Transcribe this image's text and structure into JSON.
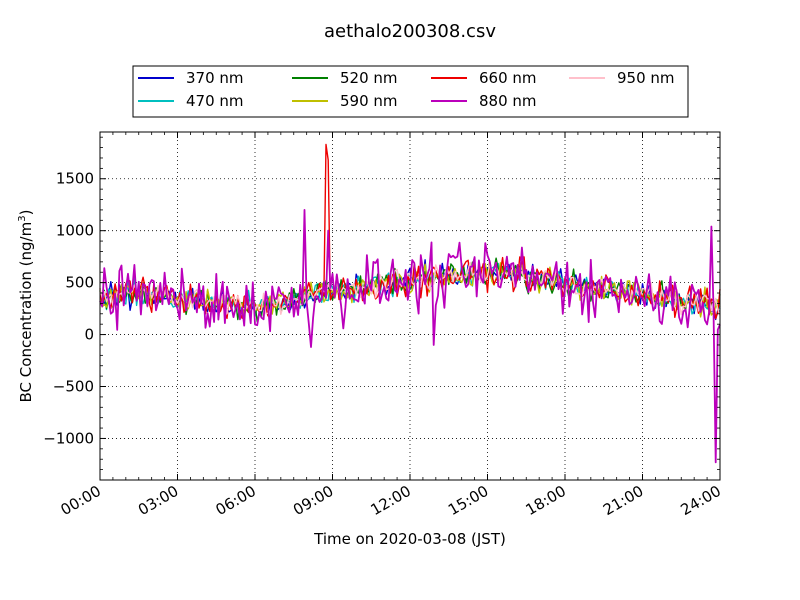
{
  "chart_data": {
    "type": "line",
    "title": "aethalo200308.csv",
    "xlabel": "Time on 2020-03-08 (JST)",
    "ylabel_main": "BC Concentration (ng/m",
    "ylabel_sup": "3",
    "ylabel_tail": ")",
    "xlim_hours": [
      0,
      24
    ],
    "ylim": [
      -1400,
      1950
    ],
    "x_ticks": [
      {
        "label": "00:00",
        "hour": 0
      },
      {
        "label": "03:00",
        "hour": 3
      },
      {
        "label": "06:00",
        "hour": 6
      },
      {
        "label": "09:00",
        "hour": 9
      },
      {
        "label": "12:00",
        "hour": 12
      },
      {
        "label": "15:00",
        "hour": 15
      },
      {
        "label": "18:00",
        "hour": 18
      },
      {
        "label": "21:00",
        "hour": 21
      },
      {
        "label": "24:00",
        "hour": 24
      }
    ],
    "y_ticks": [
      {
        "label": "1500",
        "value": 1500
      },
      {
        "label": "1000",
        "value": 1000
      },
      {
        "label": "500",
        "value": 500
      },
      {
        "label": "0",
        "value": 0
      },
      {
        "label": "−500",
        "value": -500
      },
      {
        "label": "−1000",
        "value": -1000
      }
    ],
    "grid": true,
    "legend_position": "top-center",
    "sample_interval_minutes": 5,
    "baseline": {
      "hours": [
        0,
        1.5,
        3,
        4.5,
        6,
        7.5,
        8.5,
        9.5,
        11,
        12,
        13,
        14,
        15,
        16,
        17,
        18,
        19.5,
        21,
        22,
        23,
        24
      ],
      "values": [
        360,
        420,
        340,
        300,
        280,
        320,
        400,
        430,
        480,
        520,
        560,
        570,
        590,
        580,
        540,
        500,
        440,
        390,
        340,
        300,
        270
      ]
    },
    "series": [
      {
        "name": "370 nm",
        "color": "#0000cc",
        "amplitude": 55
      },
      {
        "name": "470 nm",
        "color": "#00bfbf",
        "amplitude": 55
      },
      {
        "name": "520 nm",
        "color": "#008000",
        "amplitude": 60
      },
      {
        "name": "590 nm",
        "color": "#bfbf00",
        "amplitude": 60
      },
      {
        "name": "660 nm",
        "color": "#ee0000",
        "amplitude": 75
      },
      {
        "name": "880 nm",
        "color": "#bb00bb",
        "amplitude": 140
      },
      {
        "name": "950 nm",
        "color": "#ffc0cb",
        "amplitude": 50
      }
    ],
    "events": [
      {
        "series": "660 nm",
        "hour": 8.75,
        "value": 1830
      },
      {
        "series": "660 nm",
        "hour": 8.83,
        "value": 1680
      },
      {
        "series": "880 nm",
        "hour": 7.9,
        "value": 1200
      },
      {
        "series": "880 nm",
        "hour": 8.8,
        "value": 1000
      },
      {
        "series": "880 nm",
        "hour": 8.2,
        "value": -120
      },
      {
        "series": "880 nm",
        "hour": 12.9,
        "value": -100
      },
      {
        "series": "880 nm",
        "hour": 23.7,
        "value": 1040
      },
      {
        "series": "880 nm",
        "hour": 23.82,
        "value": -1230
      },
      {
        "series": "880 nm",
        "hour": 0.2,
        "value": -60
      },
      {
        "series": "880 nm",
        "hour": 0.15,
        "value": 640
      },
      {
        "series": "660 nm",
        "hour": 16.3,
        "value": 680
      },
      {
        "series": "370 nm",
        "hour": 12.6,
        "value": 720
      }
    ]
  }
}
